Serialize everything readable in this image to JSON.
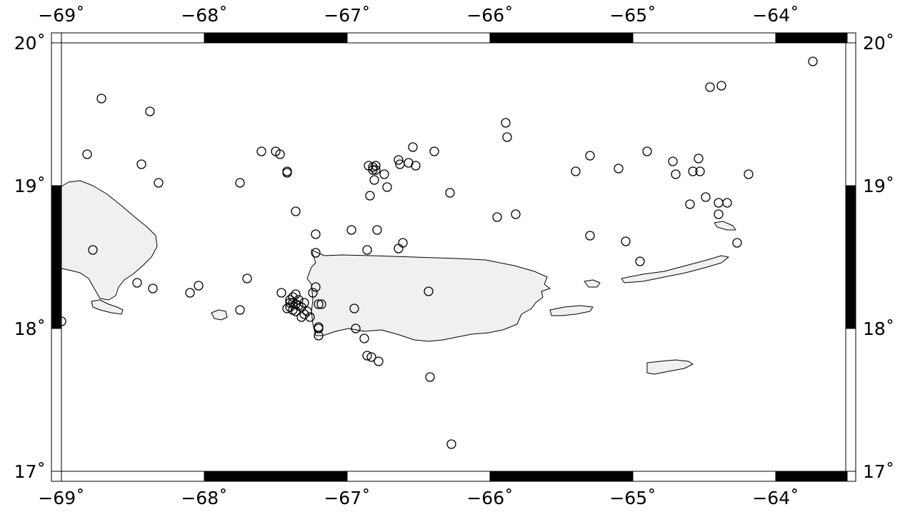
{
  "map": {
    "lon_range": [
      -69,
      -63.5
    ],
    "lat_range": [
      17,
      20
    ],
    "tick_labels_lon": [
      {
        "lon": -69,
        "label": "−69˚"
      },
      {
        "lon": -68,
        "label": "−68˚"
      },
      {
        "lon": -67,
        "label": "−67˚"
      },
      {
        "lon": -66,
        "label": "−66˚"
      },
      {
        "lon": -65,
        "label": "−65˚"
      },
      {
        "lon": -64,
        "label": "−64˚"
      }
    ],
    "tick_labels_lat": [
      {
        "lat": 20,
        "label": "20˚"
      },
      {
        "lat": 19,
        "label": "19˚"
      },
      {
        "lat": 18,
        "label": "18˚"
      },
      {
        "lat": 17,
        "label": "17˚"
      }
    ],
    "colors": {
      "land": "#f0f0f0",
      "water": "#ffffff",
      "frame": "#000000"
    },
    "marker": "open-circle",
    "events": [
      [
        -69.0,
        18.05
      ],
      [
        -68.82,
        19.22
      ],
      [
        -68.72,
        19.61
      ],
      [
        -68.78,
        18.55
      ],
      [
        -68.44,
        19.15
      ],
      [
        -68.38,
        19.52
      ],
      [
        -68.32,
        19.02
      ],
      [
        -68.47,
        18.32
      ],
      [
        -68.36,
        18.28
      ],
      [
        -68.1,
        18.25
      ],
      [
        -68.04,
        18.3
      ],
      [
        -67.75,
        19.02
      ],
      [
        -67.75,
        18.13
      ],
      [
        -67.7,
        18.35
      ],
      [
        -67.6,
        19.24
      ],
      [
        -67.5,
        19.24
      ],
      [
        -67.47,
        19.22
      ],
      [
        -67.42,
        19.1
      ],
      [
        -67.42,
        19.09
      ],
      [
        -67.36,
        18.82
      ],
      [
        -67.22,
        18.66
      ],
      [
        -67.22,
        18.53
      ],
      [
        -67.22,
        18.29
      ],
      [
        -67.24,
        18.25
      ],
      [
        -67.2,
        18.17
      ],
      [
        -67.18,
        18.17
      ],
      [
        -67.2,
        18.01
      ],
      [
        -67.2,
        18.0
      ],
      [
        -67.2,
        17.95
      ],
      [
        -67.26,
        18.08
      ],
      [
        -67.46,
        18.25
      ],
      [
        -67.4,
        18.2
      ],
      [
        -67.38,
        18.18
      ],
      [
        -67.36,
        18.17
      ],
      [
        -67.34,
        18.16
      ],
      [
        -67.32,
        18.15
      ],
      [
        -67.4,
        18.15
      ],
      [
        -67.42,
        18.14
      ],
      [
        -67.38,
        18.13
      ],
      [
        -67.36,
        18.12
      ],
      [
        -67.4,
        18.18
      ],
      [
        -67.38,
        18.22
      ],
      [
        -67.36,
        18.24
      ],
      [
        -67.34,
        18.2
      ],
      [
        -67.3,
        18.18
      ],
      [
        -67.3,
        18.1
      ],
      [
        -67.32,
        18.08
      ],
      [
        -67.28,
        18.12
      ],
      [
        -66.97,
        18.69
      ],
      [
        -66.86,
        18.55
      ],
      [
        -66.95,
        18.14
      ],
      [
        -66.94,
        18.0
      ],
      [
        -66.88,
        17.93
      ],
      [
        -66.86,
        17.81
      ],
      [
        -66.83,
        17.8
      ],
      [
        -66.78,
        17.77
      ],
      [
        -66.85,
        19.14
      ],
      [
        -66.82,
        19.11
      ],
      [
        -66.82,
        19.13
      ],
      [
        -66.8,
        19.14
      ],
      [
        -66.8,
        19.11
      ],
      [
        -66.81,
        19.04
      ],
      [
        -66.84,
        18.93
      ],
      [
        -66.79,
        18.69
      ],
      [
        -66.74,
        19.08
      ],
      [
        -66.72,
        18.99
      ],
      [
        -66.64,
        18.56
      ],
      [
        -66.61,
        18.6
      ],
      [
        -66.63,
        19.15
      ],
      [
        -66.64,
        19.18
      ],
      [
        -66.57,
        19.16
      ],
      [
        -66.54,
        19.27
      ],
      [
        -66.52,
        19.14
      ],
      [
        -66.43,
        18.26
      ],
      [
        -66.42,
        17.66
      ],
      [
        -66.39,
        19.24
      ],
      [
        -66.28,
        18.95
      ],
      [
        -66.27,
        17.19
      ],
      [
        -65.95,
        18.78
      ],
      [
        -65.89,
        19.44
      ],
      [
        -65.88,
        19.34
      ],
      [
        -65.82,
        18.8
      ],
      [
        -65.4,
        19.1
      ],
      [
        -65.3,
        19.21
      ],
      [
        -65.3,
        18.65
      ],
      [
        -65.1,
        19.12
      ],
      [
        -65.05,
        18.61
      ],
      [
        -64.95,
        18.47
      ],
      [
        -64.9,
        19.24
      ],
      [
        -64.72,
        19.17
      ],
      [
        -64.7,
        19.08
      ],
      [
        -64.6,
        18.87
      ],
      [
        -64.58,
        19.1
      ],
      [
        -64.54,
        19.19
      ],
      [
        -64.53,
        19.1
      ],
      [
        -64.49,
        18.92
      ],
      [
        -64.46,
        19.69
      ],
      [
        -64.4,
        18.88
      ],
      [
        -64.4,
        18.8
      ],
      [
        -64.38,
        19.7
      ],
      [
        -64.34,
        18.88
      ],
      [
        -64.27,
        18.6
      ],
      [
        -64.19,
        19.08
      ],
      [
        -63.74,
        19.87
      ]
    ]
  }
}
